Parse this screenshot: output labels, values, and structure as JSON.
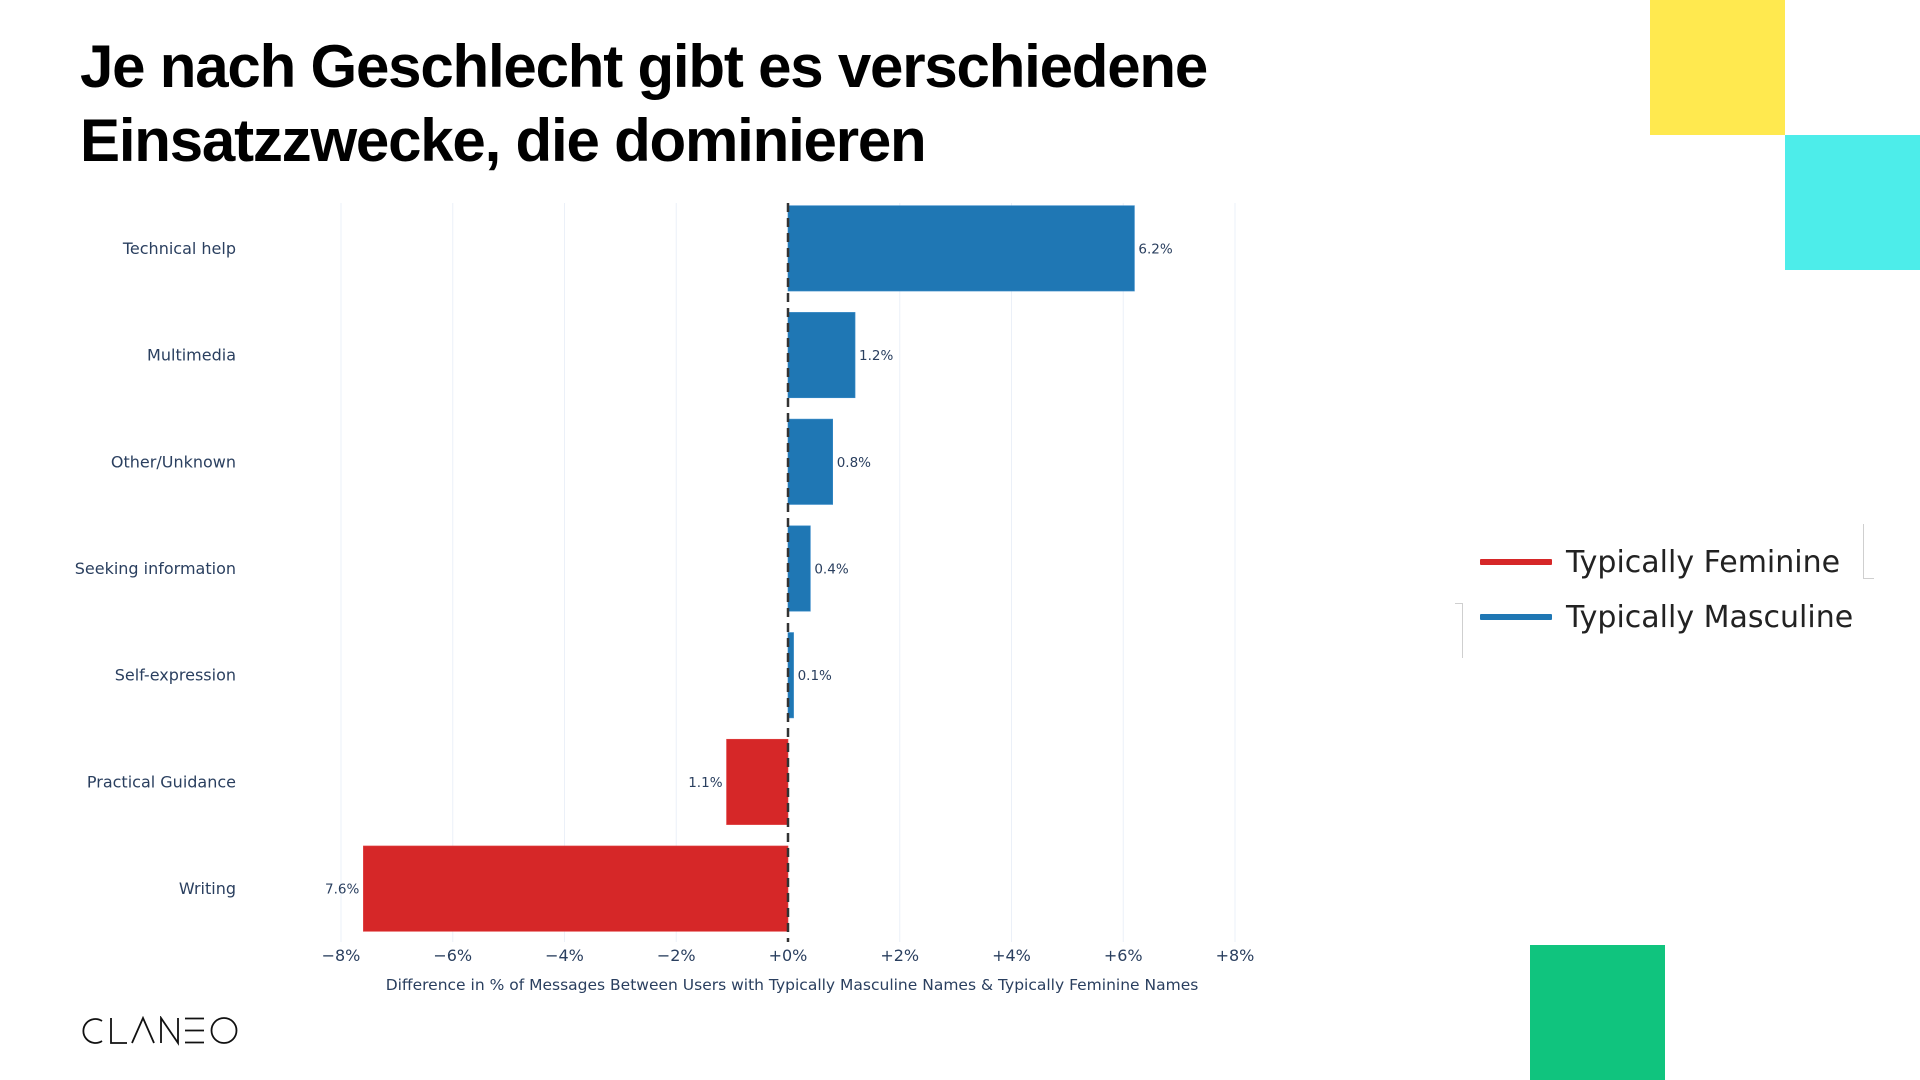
{
  "slide": {
    "title_lines": [
      "Je nach Geschlecht gibt es verschiedene",
      "Einsatzzwecke, die dominieren"
    ],
    "logo_text": "CLANEO",
    "decor_colors": {
      "yellow": "#FFE94F",
      "cyan": "#4DEDEA",
      "green": "#10C47E"
    }
  },
  "legend": {
    "items": [
      {
        "label": "Typically Feminine",
        "color": "#d62728"
      },
      {
        "label": "Typically Masculine",
        "color": "#1f77b4"
      }
    ]
  },
  "chart_data": {
    "type": "bar",
    "orientation": "horizontal",
    "title": "",
    "xlabel": "Difference in % of Messages Between Users with Typically Masculine Names & Typically Feminine Names",
    "ylabel": "",
    "xlim": [
      -8,
      8
    ],
    "xticks": [
      -8,
      -6,
      -4,
      -2,
      0,
      2,
      4,
      6,
      8
    ],
    "xtick_labels": [
      "−8%",
      "−6%",
      "−4%",
      "−2%",
      "+0%",
      "+2%",
      "+4%",
      "+6%",
      "+8%"
    ],
    "grid": true,
    "zero_line": "dashed",
    "legend_position": "right",
    "categories": [
      "Technical help",
      "Multimedia",
      "Other/Unknown",
      "Seeking information",
      "Self-expression",
      "Practical Guidance",
      "Writing"
    ],
    "values": [
      6.2,
      1.2,
      0.8,
      0.4,
      0.1,
      -1.1,
      -7.6
    ],
    "value_labels": [
      "6.2%",
      "1.2%",
      "0.8%",
      "0.4%",
      "0.1%",
      "1.1%",
      "7.6%"
    ],
    "series_colors": {
      "positive": "#1f77b4",
      "negative": "#d62728"
    },
    "series": [
      {
        "name": "Typically Masculine",
        "color": "#1f77b4"
      },
      {
        "name": "Typically Feminine",
        "color": "#d62728"
      }
    ]
  }
}
